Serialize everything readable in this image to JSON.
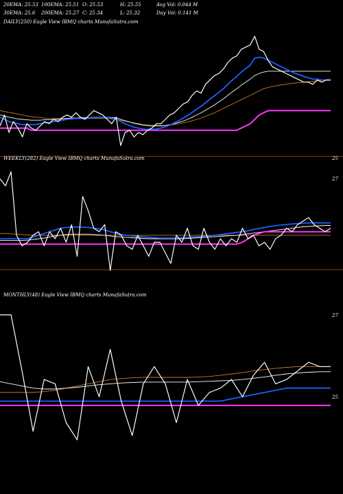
{
  "header": {
    "row1": [
      {
        "key": "ema20",
        "text": "20EMA: 25.53"
      },
      {
        "key": "ema100",
        "text": "100EMA: 25.51"
      },
      {
        "key": "open",
        "text": "O: 25.53"
      },
      {
        "key": "high",
        "text": "H: 25.55"
      },
      {
        "key": "avgvol",
        "text": "Avg Vol: 0.044  M"
      }
    ],
    "row2": [
      {
        "key": "ema30",
        "text": "30EMA: 25.6"
      },
      {
        "key": "ema200",
        "text": "200EMA: 25.27"
      },
      {
        "key": "close",
        "text": "C: 25.34"
      },
      {
        "key": "low",
        "text": "L: 25.32"
      },
      {
        "key": "dayvol",
        "text": "Day Vol: 0.141  M"
      }
    ]
  },
  "colors": {
    "background": "#000000",
    "price": "#ffffff",
    "ema_fast": "#1f5fff",
    "ema_slow": "#ffffff",
    "ema_long": "#c97a2a",
    "support": "#ff33ff",
    "ref_line": "#b05a1a"
  },
  "chart_data": [
    {
      "type": "line",
      "panel": "daily",
      "label": "DAILY(250) Eagle  View  IBMQ charts MunafaSutra.com",
      "right_labels": [],
      "series": [
        {
          "role": "price",
          "values": [
            25.05,
            25.3,
            24.9,
            25.15,
            25.0,
            24.8,
            25.1,
            25.0,
            24.95,
            25.05,
            25.15,
            25.1,
            25.2,
            25.15,
            25.25,
            25.3,
            25.25,
            25.35,
            25.25,
            25.2,
            25.3,
            25.4,
            25.35,
            25.3,
            25.2,
            25.1,
            25.25,
            24.6,
            24.9,
            24.95,
            24.8,
            24.9,
            24.85,
            24.95,
            25.0,
            25.1,
            25.1,
            25.2,
            25.3,
            25.35,
            25.45,
            25.55,
            25.6,
            25.75,
            25.85,
            25.8,
            26.0,
            26.1,
            26.2,
            26.25,
            26.35,
            26.5,
            26.6,
            26.65,
            26.8,
            26.85,
            26.9,
            27.1,
            26.8,
            26.75,
            26.55,
            26.4,
            26.35,
            26.3,
            26.25,
            26.2,
            26.15,
            26.1,
            26.05,
            26.05,
            26.0,
            26.1,
            26.05,
            26.1,
            26.1
          ]
        },
        {
          "role": "ema_fast",
          "values": [
            25.25,
            25.2,
            25.15,
            25.12,
            25.1,
            25.08,
            25.08,
            25.08,
            25.08,
            25.1,
            25.12,
            25.13,
            25.15,
            25.16,
            25.18,
            25.2,
            25.21,
            25.22,
            25.22,
            25.22,
            25.23,
            25.24,
            25.25,
            25.25,
            25.24,
            25.22,
            25.21,
            25.15,
            25.1,
            25.06,
            25.02,
            25.0,
            24.98,
            24.97,
            24.97,
            24.98,
            25.0,
            25.03,
            25.07,
            25.12,
            25.17,
            25.23,
            25.29,
            25.36,
            25.43,
            25.5,
            25.58,
            25.66,
            25.74,
            25.82,
            25.9,
            26.0,
            26.1,
            26.18,
            26.28,
            26.36,
            26.44,
            26.6,
            26.62,
            26.6,
            26.55,
            26.5,
            26.45,
            26.4,
            26.35,
            26.3,
            26.25,
            26.22,
            26.18,
            26.15,
            26.12,
            26.12,
            26.1,
            26.1,
            26.1
          ]
        },
        {
          "role": "ema_slow",
          "values": [
            25.3,
            25.28,
            25.25,
            25.23,
            25.21,
            25.2,
            25.19,
            25.18,
            25.18,
            25.18,
            25.19,
            25.19,
            25.2,
            25.2,
            25.21,
            25.22,
            25.23,
            25.23,
            25.24,
            25.24,
            25.24,
            25.25,
            25.25,
            25.25,
            25.25,
            25.24,
            25.24,
            25.2,
            25.17,
            25.14,
            25.11,
            25.09,
            25.07,
            25.06,
            25.05,
            25.05,
            25.05,
            25.06,
            25.08,
            25.1,
            25.13,
            25.16,
            25.2,
            25.25,
            25.3,
            25.35,
            25.41,
            25.47,
            25.53,
            25.6,
            25.67,
            25.75,
            25.83,
            25.9,
            25.98,
            26.05,
            26.12,
            26.2,
            26.25,
            26.28,
            26.3,
            26.3,
            26.3,
            26.3,
            26.3,
            26.3,
            26.3,
            26.3,
            26.3,
            26.3,
            26.3,
            26.3,
            26.3,
            26.3,
            26.3
          ]
        },
        {
          "role": "ema_long",
          "values": [
            25.4,
            25.38,
            25.36,
            25.34,
            25.32,
            25.3,
            25.28,
            25.26,
            25.25,
            25.24,
            25.23,
            25.22,
            25.22,
            25.22,
            25.22,
            25.22,
            25.22,
            25.22,
            25.22,
            25.22,
            25.22,
            25.22,
            25.22,
            25.22,
            25.22,
            25.21,
            25.2,
            25.18,
            25.16,
            25.14,
            25.12,
            25.1,
            25.08,
            25.07,
            25.06,
            25.06,
            25.06,
            25.06,
            25.07,
            25.08,
            25.1,
            25.12,
            25.14,
            25.17,
            25.2,
            25.23,
            25.27,
            25.31,
            25.35,
            25.4,
            25.45,
            25.5,
            25.55,
            25.6,
            25.65,
            25.7,
            25.75,
            25.8,
            25.85,
            25.9,
            25.93,
            25.95,
            25.97,
            25.99,
            26.0,
            26.02,
            26.03,
            26.04,
            26.05,
            26.06,
            26.07,
            26.08,
            26.09,
            26.1,
            26.1
          ]
        },
        {
          "role": "support",
          "values": [
            25.0,
            25.0,
            25.0,
            25.0,
            25.0,
            25.0,
            25.0,
            24.95,
            24.95,
            24.95,
            24.95,
            24.95,
            24.95,
            24.95,
            24.95,
            24.95,
            24.95,
            24.95,
            24.95,
            24.95,
            24.95,
            24.95,
            24.95,
            24.95,
            24.95,
            24.95,
            24.95,
            24.95,
            24.95,
            24.95,
            24.95,
            24.95,
            24.95,
            24.95,
            24.95,
            24.95,
            24.95,
            24.95,
            24.95,
            24.95,
            24.95,
            24.95,
            24.95,
            24.95,
            24.95,
            24.95,
            24.95,
            24.95,
            24.95,
            24.95,
            24.95,
            24.95,
            24.95,
            24.95,
            25.0,
            25.05,
            25.1,
            25.2,
            25.3,
            25.35,
            25.4,
            25.4,
            25.4,
            25.4,
            25.4,
            25.4,
            25.4,
            25.4,
            25.4,
            25.4,
            25.4,
            25.4,
            25.4,
            25.4,
            25.4
          ]
        }
      ]
    },
    {
      "type": "line",
      "panel": "weekly",
      "label": "WEEKLY(282) Eagle  View  IBMQ charts MunafaSutra.com",
      "right_labels": [
        {
          "text": "25",
          "pos": "top"
        },
        {
          "text": "27",
          "pos": "bottom"
        }
      ],
      "series": [
        {
          "role": "price",
          "values": [
            27.2,
            27.0,
            27.4,
            25.6,
            25.3,
            25.4,
            25.6,
            25.7,
            25.3,
            25.7,
            25.5,
            25.8,
            25.4,
            25.9,
            25.0,
            26.7,
            26.3,
            25.8,
            25.7,
            25.9,
            24.6,
            25.7,
            25.6,
            25.3,
            25.2,
            25.6,
            25.3,
            25.0,
            25.4,
            25.4,
            25.1,
            24.8,
            25.6,
            25.4,
            25.8,
            25.3,
            25.2,
            25.8,
            25.4,
            25.2,
            25.5,
            25.3,
            25.5,
            25.4,
            25.8,
            25.5,
            25.6,
            25.3,
            25.4,
            25.2,
            25.5,
            25.6,
            25.8,
            25.7,
            25.9,
            26.0,
            26.1,
            25.9,
            25.8,
            25.7,
            25.8
          ]
        },
        {
          "role": "ema_fast",
          "values": [
            25.5,
            25.5,
            25.5,
            25.5,
            25.5,
            25.5,
            25.55,
            25.6,
            25.65,
            25.7,
            25.75,
            25.8,
            25.82,
            25.83,
            25.83,
            25.83,
            25.82,
            25.8,
            25.78,
            25.75,
            25.7,
            25.66,
            25.62,
            25.6,
            25.58,
            25.56,
            25.55,
            25.54,
            25.53,
            25.52,
            25.52,
            25.52,
            25.52,
            25.53,
            25.54,
            25.55,
            25.56,
            25.57,
            25.58,
            25.6,
            25.62,
            25.64,
            25.66,
            25.68,
            25.7,
            25.73,
            25.76,
            25.79,
            25.82,
            25.85,
            25.87,
            25.89,
            25.9,
            25.92,
            25.93,
            25.94,
            25.95,
            25.95,
            25.95,
            25.95,
            25.95
          ]
        },
        {
          "role": "ema_slow",
          "values": [
            25.45,
            25.45,
            25.45,
            25.45,
            25.45,
            25.46,
            25.48,
            25.5,
            25.52,
            25.55,
            25.58,
            25.6,
            25.62,
            25.63,
            25.63,
            25.63,
            25.63,
            25.62,
            25.61,
            25.6,
            25.58,
            25.56,
            25.55,
            25.54,
            25.53,
            25.52,
            25.51,
            25.5,
            25.5,
            25.5,
            25.5,
            25.5,
            25.5,
            25.5,
            25.51,
            25.52,
            25.53,
            25.54,
            25.55,
            25.56,
            25.57,
            25.58,
            25.59,
            25.6,
            25.62,
            25.64,
            25.66,
            25.68,
            25.7,
            25.72,
            25.74,
            25.76,
            25.78,
            25.8,
            25.82,
            25.84,
            25.85,
            25.86,
            25.87,
            25.88,
            25.88
          ]
        },
        {
          "role": "ema_long",
          "values": [
            25.65,
            25.65,
            25.64,
            25.63,
            25.62,
            25.61,
            25.6,
            25.6,
            25.6,
            25.6,
            25.6,
            25.6,
            25.6,
            25.6,
            25.6,
            25.6,
            25.6,
            25.6,
            25.6,
            25.6,
            25.6,
            25.6,
            25.6,
            25.6,
            25.6,
            25.6,
            25.6,
            25.6,
            25.6,
            25.6,
            25.6,
            25.6,
            25.6,
            25.6,
            25.6,
            25.6,
            25.6,
            25.6,
            25.6,
            25.6,
            25.6,
            25.6,
            25.6,
            25.6,
            25.6,
            25.6,
            25.6,
            25.6,
            25.6,
            25.6,
            25.6,
            25.6,
            25.6,
            25.6,
            25.6,
            25.6,
            25.6,
            25.6,
            25.6,
            25.6,
            25.6
          ]
        },
        {
          "role": "support",
          "values": [
            25.35,
            25.35,
            25.35,
            25.35,
            25.35,
            25.35,
            25.35,
            25.35,
            25.35,
            25.35,
            25.35,
            25.35,
            25.35,
            25.35,
            25.35,
            25.35,
            25.35,
            25.35,
            25.35,
            25.35,
            25.35,
            25.35,
            25.35,
            25.35,
            25.35,
            25.35,
            25.35,
            25.35,
            25.35,
            25.35,
            25.35,
            25.35,
            25.35,
            25.35,
            25.35,
            25.35,
            25.35,
            25.35,
            25.35,
            25.35,
            25.35,
            25.35,
            25.35,
            25.35,
            25.4,
            25.5,
            25.6,
            25.65,
            25.7,
            25.7,
            25.7,
            25.7,
            25.7,
            25.7,
            25.7,
            25.7,
            25.7,
            25.7,
            25.7,
            25.7,
            25.7
          ]
        }
      ]
    },
    {
      "type": "line",
      "panel": "monthly",
      "label": "MONTHLY(48) Eagle  View  IBMQ charts MunafaSutra.com",
      "right_labels": [
        {
          "text": "27",
          "pos": "top"
        },
        {
          "text": "25",
          "pos": "bottom"
        }
      ],
      "series": [
        {
          "role": "price",
          "values": [
            27.3,
            27.3,
            26.0,
            24.6,
            25.8,
            25.7,
            24.8,
            24.4,
            26.1,
            25.4,
            26.5,
            25.3,
            24.5,
            25.7,
            26.1,
            25.7,
            24.8,
            25.8,
            25.2,
            25.5,
            25.6,
            25.8,
            25.4,
            25.9,
            26.2,
            25.7,
            25.8,
            26.0,
            26.2,
            26.1,
            26.1
          ]
        },
        {
          "role": "ema_fast",
          "values": [
            25.3,
            25.3,
            25.3,
            25.3,
            25.3,
            25.3,
            25.3,
            25.3,
            25.3,
            25.3,
            25.3,
            25.3,
            25.3,
            25.3,
            25.3,
            25.3,
            25.3,
            25.3,
            25.3,
            25.3,
            25.3,
            25.35,
            25.4,
            25.45,
            25.5,
            25.55,
            25.6,
            25.6,
            25.6,
            25.6,
            25.6
          ]
        },
        {
          "role": "ema_slow",
          "values": [
            25.75,
            25.7,
            25.65,
            25.6,
            25.58,
            25.58,
            25.6,
            25.62,
            25.65,
            25.68,
            25.7,
            25.72,
            25.73,
            25.74,
            25.74,
            25.74,
            25.74,
            25.74,
            25.75,
            25.76,
            25.77,
            25.78,
            25.8,
            25.83,
            25.86,
            25.9,
            25.93,
            25.95,
            25.97,
            25.98,
            25.98
          ]
        },
        {
          "role": "ema_long",
          "values": [
            25.5,
            25.5,
            25.5,
            25.5,
            25.52,
            25.55,
            25.6,
            25.65,
            25.7,
            25.75,
            25.8,
            25.82,
            25.84,
            25.85,
            25.85,
            25.85,
            25.85,
            25.85,
            25.86,
            25.87,
            25.9,
            25.93,
            25.96,
            26.0,
            26.03,
            26.06,
            26.08,
            26.1,
            26.1,
            26.1,
            26.1
          ]
        },
        {
          "role": "support",
          "values": [
            25.2,
            25.2,
            25.2,
            25.2,
            25.2,
            25.2,
            25.2,
            25.2,
            25.2,
            25.2,
            25.2,
            25.2,
            25.2,
            25.2,
            25.2,
            25.2,
            25.2,
            25.2,
            25.2,
            25.2,
            25.2,
            25.2,
            25.2,
            25.2,
            25.2,
            25.2,
            25.2,
            25.2,
            25.2,
            25.2,
            25.2
          ]
        }
      ]
    }
  ]
}
